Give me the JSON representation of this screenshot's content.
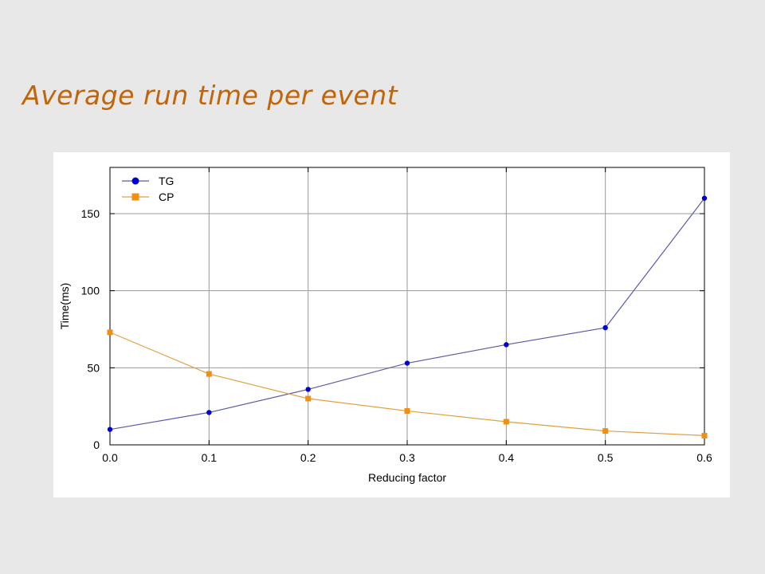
{
  "slide": {
    "title": "Average run time per event",
    "title_color": "#c0650a",
    "background": "#e8e8e8"
  },
  "chart_data": {
    "type": "line",
    "title": "",
    "xlabel": "Reducing factor",
    "ylabel": "Time(ms)",
    "x": [
      0.0,
      0.1,
      0.2,
      0.3,
      0.4,
      0.5,
      0.6
    ],
    "xticks": [
      "0.0",
      "0.1",
      "0.2",
      "0.3",
      "0.4",
      "0.5",
      "0.6"
    ],
    "yticks": [
      "0",
      "50",
      "100",
      "150"
    ],
    "xlim": [
      0.0,
      0.6
    ],
    "ylim": [
      0,
      180
    ],
    "grid": true,
    "legend_position": "top-left",
    "series": [
      {
        "name": "TG",
        "color": "#0000cc",
        "line_color": "#5a5aa6",
        "marker": "circle",
        "values": [
          10,
          21,
          36,
          53,
          65,
          76,
          160
        ]
      },
      {
        "name": "CP",
        "color": "#f09010",
        "line_color": "#e0a040",
        "marker": "square",
        "values": [
          73,
          46,
          30,
          22,
          15,
          9,
          6
        ]
      }
    ]
  }
}
